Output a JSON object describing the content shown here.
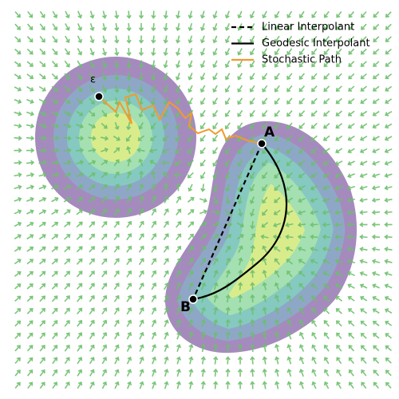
{
  "legend": [
    {
      "label": "Linear Interpolant",
      "color": "#000000",
      "dashed": true
    },
    {
      "label": "Geodesic Interpolant",
      "color": "#000000",
      "dashed": false
    },
    {
      "label": "Stochastic Path",
      "color": "#f29a2e",
      "dashed": false
    }
  ],
  "points": {
    "epsilon": "ε",
    "a": "A",
    "b": "B"
  }
}
